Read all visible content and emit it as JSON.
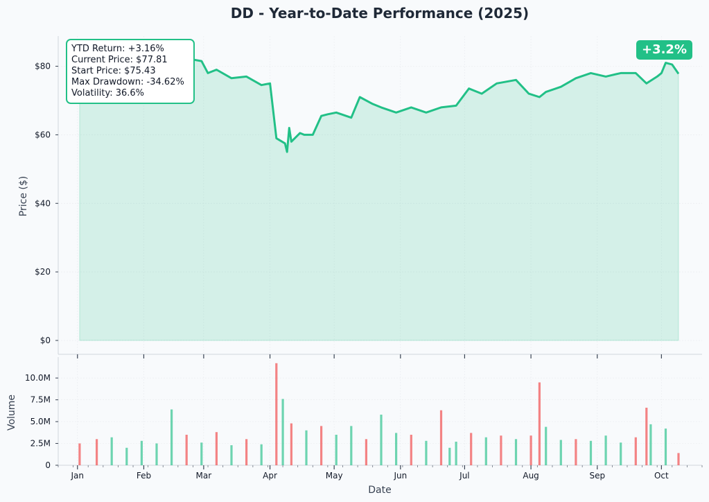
{
  "chart_data": {
    "type": "line",
    "title": "DD - Year-to-Date Performance (2025)",
    "price_panel": {
      "ylabel": "Price ($)",
      "ylim": [
        0,
        88
      ],
      "yticks": [
        0,
        20,
        40,
        60,
        80
      ],
      "ytick_labels": [
        "$0",
        "$20",
        "$40",
        "$60",
        "$80"
      ],
      "fill": true,
      "series": [
        {
          "type": "line",
          "x": [
            "2025-01-02",
            "2025-01-20",
            "2025-02-03",
            "2025-02-14",
            "2025-02-19",
            "2025-02-28",
            "2025-03-03",
            "2025-03-07",
            "2025-03-14",
            "2025-03-21",
            "2025-03-28",
            "2025-04-01",
            "2025-04-04",
            "2025-04-08",
            "2025-04-09",
            "2025-04-10",
            "2025-04-11",
            "2025-04-15",
            "2025-04-17",
            "2025-04-21",
            "2025-04-25",
            "2025-04-28",
            "2025-05-02",
            "2025-05-09",
            "2025-05-13",
            "2025-05-19",
            "2025-05-23",
            "2025-05-30",
            "2025-06-06",
            "2025-06-13",
            "2025-06-20",
            "2025-06-27",
            "2025-07-03",
            "2025-07-09",
            "2025-07-16",
            "2025-07-25",
            "2025-07-31",
            "2025-08-05",
            "2025-08-08",
            "2025-08-15",
            "2025-08-22",
            "2025-08-29",
            "2025-09-05",
            "2025-09-12",
            "2025-09-19",
            "2025-09-24",
            "2025-09-29",
            "2025-10-01",
            "2025-10-03",
            "2025-10-06",
            "2025-10-09"
          ],
          "y": [
            75.43,
            79.5,
            82.0,
            84.0,
            82.5,
            81.5,
            78.0,
            79.0,
            76.5,
            77.0,
            74.5,
            75.0,
            59.0,
            57.5,
            55.0,
            62.0,
            58.0,
            60.5,
            60.0,
            60.0,
            65.5,
            66.0,
            66.5,
            65.0,
            71.0,
            69.0,
            68.0,
            66.5,
            68.0,
            66.5,
            68.0,
            68.5,
            73.5,
            72.0,
            75.0,
            76.0,
            72.0,
            71.0,
            72.5,
            74.0,
            76.5,
            78.0,
            77.0,
            78.0,
            78.0,
            75.0,
            77.0,
            78.0,
            81.0,
            80.5,
            77.81
          ]
        }
      ]
    },
    "volume_panel": {
      "ylabel": "Volume",
      "ylim": [
        0,
        12000000
      ],
      "yticks": [
        0,
        2500000,
        5000000,
        7500000,
        10000000
      ],
      "ytick_labels": [
        "0",
        "2.5M",
        "5.0M",
        "7.5M",
        "10.0M"
      ],
      "series": [
        {
          "type": "bar",
          "x": [
            "2025-01-02",
            "2025-01-10",
            "2025-01-17",
            "2025-01-24",
            "2025-01-31",
            "2025-02-07",
            "2025-02-14",
            "2025-02-21",
            "2025-02-28",
            "2025-03-07",
            "2025-03-14",
            "2025-03-21",
            "2025-03-28",
            "2025-04-04",
            "2025-04-07",
            "2025-04-11",
            "2025-04-18",
            "2025-04-25",
            "2025-05-02",
            "2025-05-09",
            "2025-05-16",
            "2025-05-23",
            "2025-05-30",
            "2025-06-06",
            "2025-06-13",
            "2025-06-20",
            "2025-06-24",
            "2025-06-27",
            "2025-07-04",
            "2025-07-11",
            "2025-07-18",
            "2025-07-25",
            "2025-08-01",
            "2025-08-05",
            "2025-08-08",
            "2025-08-15",
            "2025-08-22",
            "2025-08-29",
            "2025-09-05",
            "2025-09-12",
            "2025-09-19",
            "2025-09-24",
            "2025-09-26",
            "2025-10-03",
            "2025-10-09"
          ],
          "values": [
            2500000,
            3000000,
            3200000,
            2000000,
            2800000,
            2500000,
            6400000,
            3500000,
            2600000,
            3800000,
            2300000,
            3000000,
            2400000,
            11700000,
            7600000,
            4800000,
            4000000,
            4500000,
            3500000,
            4500000,
            3000000,
            5800000,
            3700000,
            3500000,
            2800000,
            6300000,
            2000000,
            2700000,
            3700000,
            3200000,
            3400000,
            3000000,
            3400000,
            9500000,
            4400000,
            2900000,
            3000000,
            2800000,
            3400000,
            2600000,
            3200000,
            6600000,
            4700000,
            4200000,
            1400000
          ],
          "direction": [
            "down",
            "down",
            "up",
            "up",
            "up",
            "up",
            "up",
            "down",
            "up",
            "down",
            "up",
            "down",
            "up",
            "down",
            "up",
            "down",
            "up",
            "down",
            "up",
            "up",
            "down",
            "up",
            "up",
            "down",
            "up",
            "down",
            "up",
            "up",
            "down",
            "up",
            "down",
            "up",
            "down",
            "down",
            "up",
            "up",
            "down",
            "up",
            "up",
            "up",
            "down",
            "down",
            "up",
            "up",
            "down"
          ]
        }
      ]
    },
    "xlabel": "Date",
    "xticks": [
      "Jan",
      "Feb",
      "Mar",
      "Apr",
      "May",
      "Jun",
      "Jul",
      "Aug",
      "Sep",
      "Oct"
    ],
    "x_range": [
      "2024-12-23",
      "2025-10-20"
    ],
    "grid": true,
    "colors": {
      "up": "#22c087",
      "down": "#ef4444",
      "line": "#22c087",
      "fill": "#22c087"
    }
  },
  "stats": {
    "ytd_return": "YTD Return: +3.16%",
    "current_price": "Current Price: $77.81",
    "start_price": "Start Price: $75.43",
    "max_drawdown": "Max Drawdown: -34.62%",
    "volatility": "Volatility: 36.6%"
  },
  "badge": {
    "text": "+3.2%"
  }
}
